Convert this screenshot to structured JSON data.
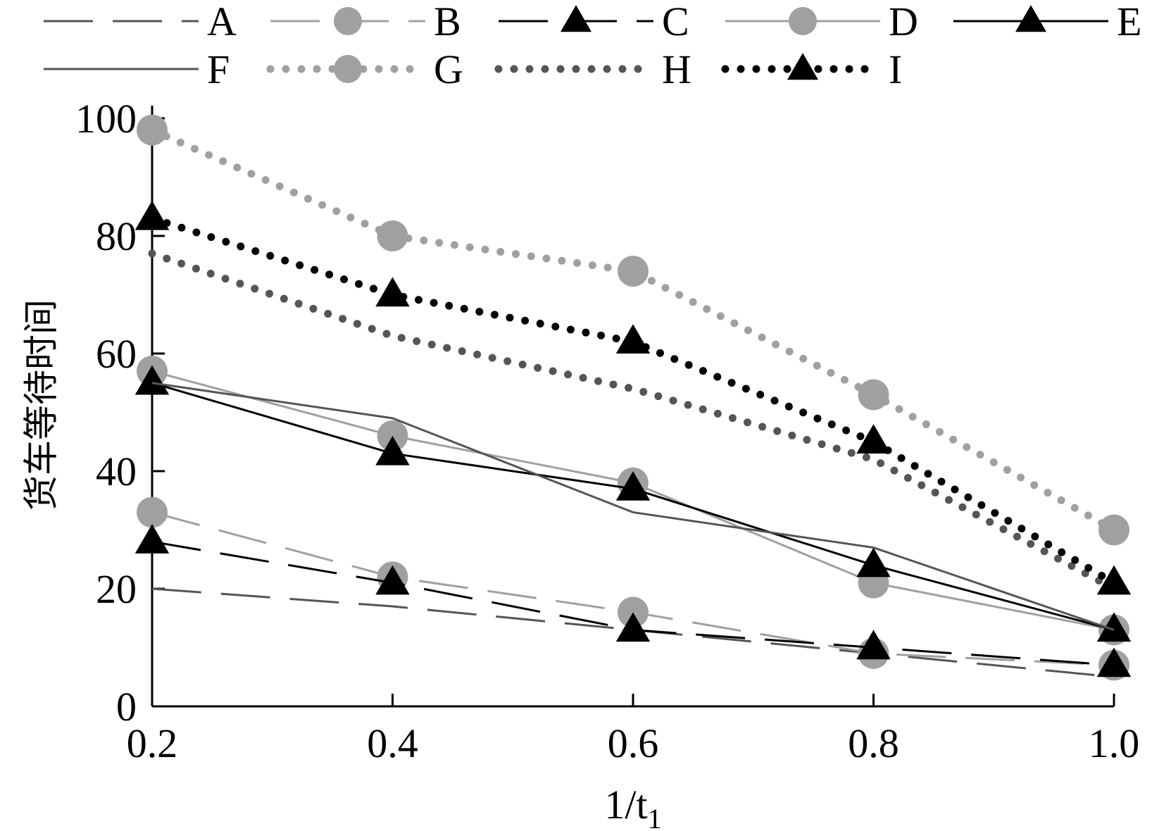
{
  "chart_data": {
    "type": "line",
    "xlabel": "1/t",
    "xlabel_sub": "1",
    "ylabel": "货车等待时间",
    "x_ticks": [
      "0.2",
      "0.4",
      "0.6",
      "0.8",
      "1.0"
    ],
    "y_ticks": [
      "0",
      "20",
      "40",
      "60",
      "80",
      "100"
    ],
    "xlim": [
      0.2,
      1.0
    ],
    "ylim": [
      0,
      100
    ],
    "grid": false,
    "legend_position": "top",
    "x": [
      0.2,
      0.4,
      0.6,
      0.8,
      1.0
    ],
    "series": [
      {
        "name": "A",
        "values": [
          20,
          17,
          13,
          9,
          5
        ],
        "color": "#555555",
        "dash": "long",
        "marker": "none"
      },
      {
        "name": "B",
        "values": [
          33,
          22,
          16,
          9,
          7
        ],
        "color": "#a0a0a0",
        "dash": "long",
        "marker": "circle"
      },
      {
        "name": "C",
        "values": [
          28,
          21,
          13,
          10,
          7
        ],
        "color": "#000000",
        "dash": "long",
        "marker": "triangle"
      },
      {
        "name": "D",
        "values": [
          57,
          46,
          38,
          21,
          13
        ],
        "color": "#a0a0a0",
        "dash": "solid",
        "marker": "circle"
      },
      {
        "name": "E",
        "values": [
          55,
          43,
          37,
          24,
          13
        ],
        "color": "#000000",
        "dash": "solid",
        "marker": "triangle"
      },
      {
        "name": "F",
        "values": [
          55,
          49,
          33,
          27,
          13
        ],
        "color": "#555555",
        "dash": "solid",
        "marker": "none"
      },
      {
        "name": "G",
        "values": [
          98,
          80,
          74,
          53,
          30
        ],
        "color": "#a0a0a0",
        "dash": "dot",
        "marker": "circle"
      },
      {
        "name": "H",
        "values": [
          77,
          63,
          54,
          42,
          20
        ],
        "color": "#555555",
        "dash": "dot",
        "marker": "none"
      },
      {
        "name": "I",
        "values": [
          83,
          70,
          62,
          45,
          21
        ],
        "color": "#000000",
        "dash": "dot",
        "marker": "triangle"
      }
    ]
  }
}
